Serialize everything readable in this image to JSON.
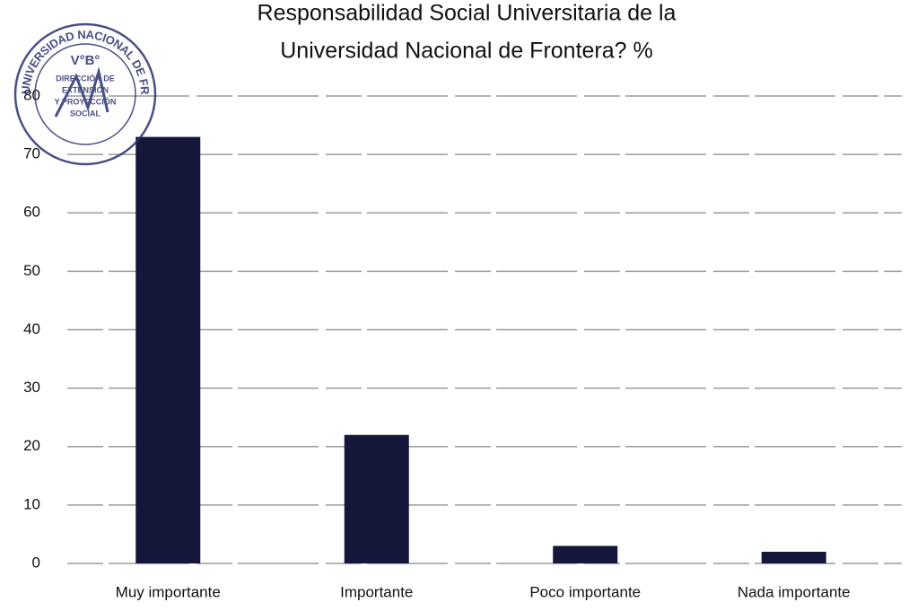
{
  "chart_data": {
    "type": "bar",
    "title": [
      "Responsabilidad Social Universitaria de la",
      "Universidad Nacional de Frontera? %"
    ],
    "categories": [
      "Muy importante",
      "Importante",
      "Poco importante",
      "Nada importante"
    ],
    "values": [
      73,
      22,
      3,
      2
    ],
    "color": "#15173a",
    "ylim": [
      0,
      80
    ],
    "yticks": [
      0,
      10,
      20,
      30,
      40,
      50,
      60,
      70,
      80
    ],
    "grid": true
  },
  "stamp": {
    "ring": "UNIVERSIDAD NACIONAL DE FRONTERA",
    "mark": "V°B°",
    "lines": [
      "DIRECCIÓN DE",
      "EXTENSIÓN",
      "Y PROYECCIÓN",
      "SOCIAL"
    ]
  }
}
